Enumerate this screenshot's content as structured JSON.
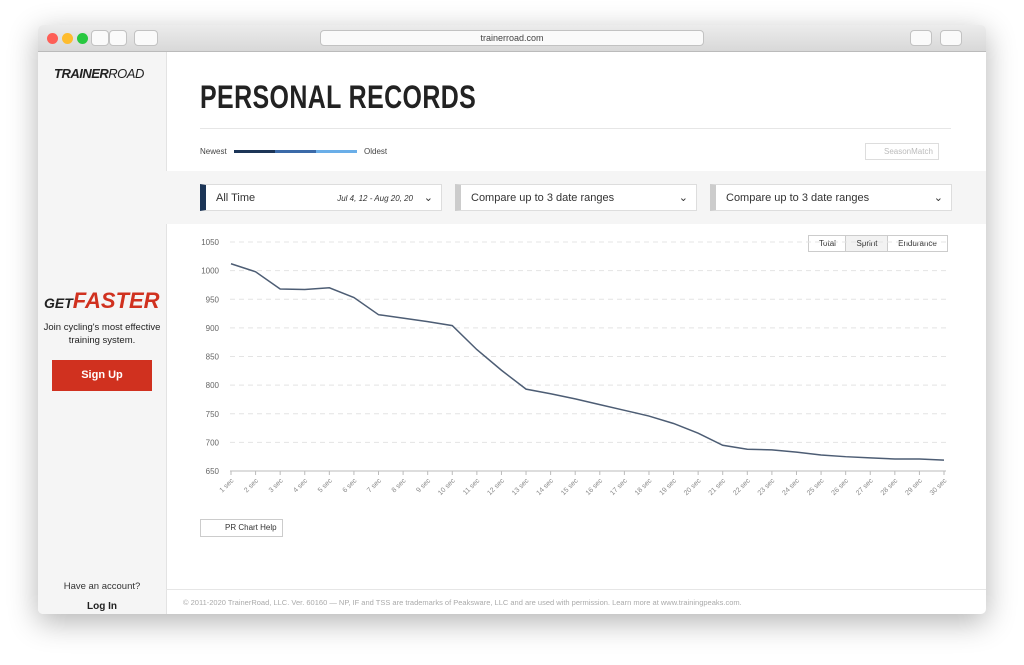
{
  "browser": {
    "url": "trainerroad.com"
  },
  "sidebar": {
    "logo_bold": "TRAINER",
    "logo_light": "ROAD",
    "promo_get": "GET",
    "promo_faster": "FASTER",
    "promo_text": "Join cycling's most effective training system.",
    "signup": "Sign Up",
    "account_question": "Have an account?",
    "login": "Log In"
  },
  "header": {
    "title": "PERSONAL RECORDS",
    "legend_newest": "Newest",
    "legend_oldest": "Oldest",
    "season_match": "SeasonMatch"
  },
  "filters": {
    "range_name": "All Time",
    "range_dates": "Jul 4, 12 - Aug 20, 20",
    "compare_1": "Compare up to 3 date ranges",
    "compare_2": "Compare up to 3 date ranges"
  },
  "toggle": {
    "total": "Total",
    "sprint": "Sprint",
    "endurance": "Endurance"
  },
  "help": "PR Chart Help",
  "footer": "© 2011-2020 TrainerRoad, LLC. Ver. 60160 — NP, IF and TSS are trademarks of Peaksware, LLC and are used with permission. Learn more at www.trainingpeaks.com.",
  "chart_data": {
    "type": "line",
    "color": "#4d5d74",
    "categories": [
      "1 sec",
      "2 sec",
      "3 sec",
      "4 sec",
      "5 sec",
      "6 sec",
      "7 sec",
      "8 sec",
      "9 sec",
      "10 sec",
      "11 sec",
      "12 sec",
      "13 sec",
      "14 sec",
      "15 sec",
      "16 sec",
      "17 sec",
      "18 sec",
      "19 sec",
      "20 sec",
      "21 sec",
      "22 sec",
      "23 sec",
      "24 sec",
      "25 sec",
      "26 sec",
      "27 sec",
      "28 sec",
      "29 sec",
      "30 sec"
    ],
    "values": [
      1012,
      998,
      968,
      967,
      970,
      953,
      923,
      917,
      911,
      904,
      862,
      826,
      793,
      785,
      776,
      766,
      756,
      746,
      733,
      716,
      695,
      688,
      687,
      683,
      678,
      675,
      673,
      671,
      671,
      669
    ],
    "ylim": [
      650,
      1050
    ],
    "yticks": [
      650,
      700,
      750,
      800,
      850,
      900,
      950,
      1000,
      1050
    ],
    "grid": true
  }
}
